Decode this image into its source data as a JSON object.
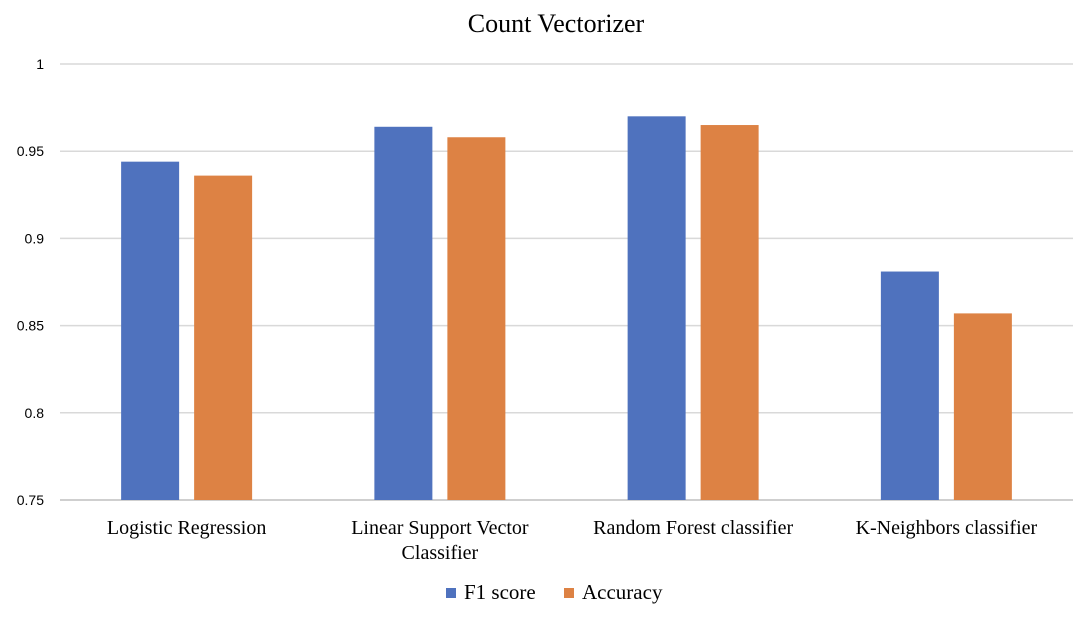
{
  "chart_data": {
    "type": "bar",
    "title": "Count Vectorizer",
    "xlabel": "",
    "ylabel": "",
    "ylim": [
      0.75,
      1
    ],
    "yticks": [
      "0.75",
      "0.8",
      "0.85",
      "0.9",
      "0.95",
      "1"
    ],
    "categories": [
      [
        "Logistic Regression"
      ],
      [
        "Linear Support Vector",
        "Classifier"
      ],
      [
        "Random Forest classifier"
      ],
      [
        "K-Neighbors classifier"
      ]
    ],
    "series": [
      {
        "name": "F1 score",
        "color": "#4f72be",
        "values": [
          0.944,
          0.964,
          0.97,
          0.881
        ]
      },
      {
        "name": "Accuracy",
        "color": "#dd8244",
        "values": [
          0.936,
          0.958,
          0.965,
          0.857
        ]
      }
    ],
    "grid": true,
    "legend": "bottom-center"
  }
}
